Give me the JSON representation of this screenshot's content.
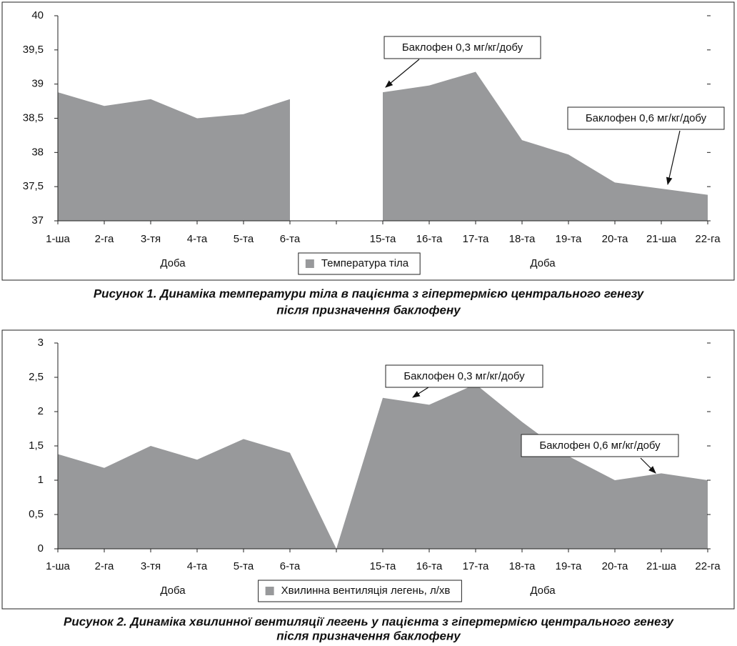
{
  "chart_data": [
    {
      "type": "area",
      "categories": [
        "1-ша",
        "2-га",
        "3-тя",
        "4-та",
        "5-та",
        "6-та",
        null,
        "15-та",
        "16-та",
        "17-та",
        "18-та",
        "19-та",
        "20-та",
        "21-ша",
        "22-га"
      ],
      "series": [
        {
          "name": "Температура тіла",
          "color": "#98999b",
          "values": [
            38.88,
            38.68,
            38.78,
            38.5,
            38.56,
            38.78,
            null,
            38.88,
            38.98,
            39.18,
            38.18,
            37.97,
            37.56,
            37.47,
            37.38
          ]
        }
      ],
      "ylim": [
        37,
        40
      ],
      "yticks": [
        37,
        {
          "value": 37.5,
          "label": "37,5"
        },
        38,
        {
          "value": 38.5,
          "label": "38,5"
        },
        39,
        {
          "value": 39.5,
          "label": "39,5"
        },
        40
      ],
      "x_label": "Доба",
      "legend": "bottom",
      "annotations": [
        {
          "text": "Баклофен 0,3 мг/кг/добу"
        },
        {
          "text": "Баклофен 0,6 мг/кг/добу"
        }
      ],
      "caption": [
        "Рисунок 1. Динаміка температури тіла в пацієнта з гіпертермією центрального генезу",
        "після призначення баклофену"
      ]
    },
    {
      "type": "area",
      "categories": [
        "1-ша",
        "2-га",
        "3-тя",
        "4-та",
        "5-та",
        "6-та",
        null,
        "15-та",
        "16-та",
        "17-та",
        "18-та",
        "19-та",
        "20-та",
        "21-ша",
        "22-га"
      ],
      "series": [
        {
          "name": "Хвилинна вентиляція легень, л/хв",
          "color": "#98999b",
          "values": [
            1.38,
            1.18,
            1.5,
            1.3,
            1.6,
            1.4,
            0,
            2.2,
            2.1,
            2.4,
            1.85,
            1.35,
            1.0,
            1.1,
            1.0
          ]
        }
      ],
      "ylim": [
        0,
        3
      ],
      "yticks": [
        0,
        {
          "value": 0.5,
          "label": "0,5"
        },
        1,
        {
          "value": 1.5,
          "label": "1,5"
        },
        2,
        {
          "value": 2.5,
          "label": "2,5"
        },
        3
      ],
      "x_label": "Доба",
      "legend": "bottom",
      "annotations": [
        {
          "text": "Баклофен 0,3 мг/кг/добу"
        },
        {
          "text": "Баклофен 0,6 мг/кг/добу"
        }
      ],
      "caption": [
        "Рисунок 2. Динаміка хвилинної вентиляції легень у пацієнта з гіпертермією центрального генезу",
        "після призначення баклофену"
      ]
    }
  ]
}
